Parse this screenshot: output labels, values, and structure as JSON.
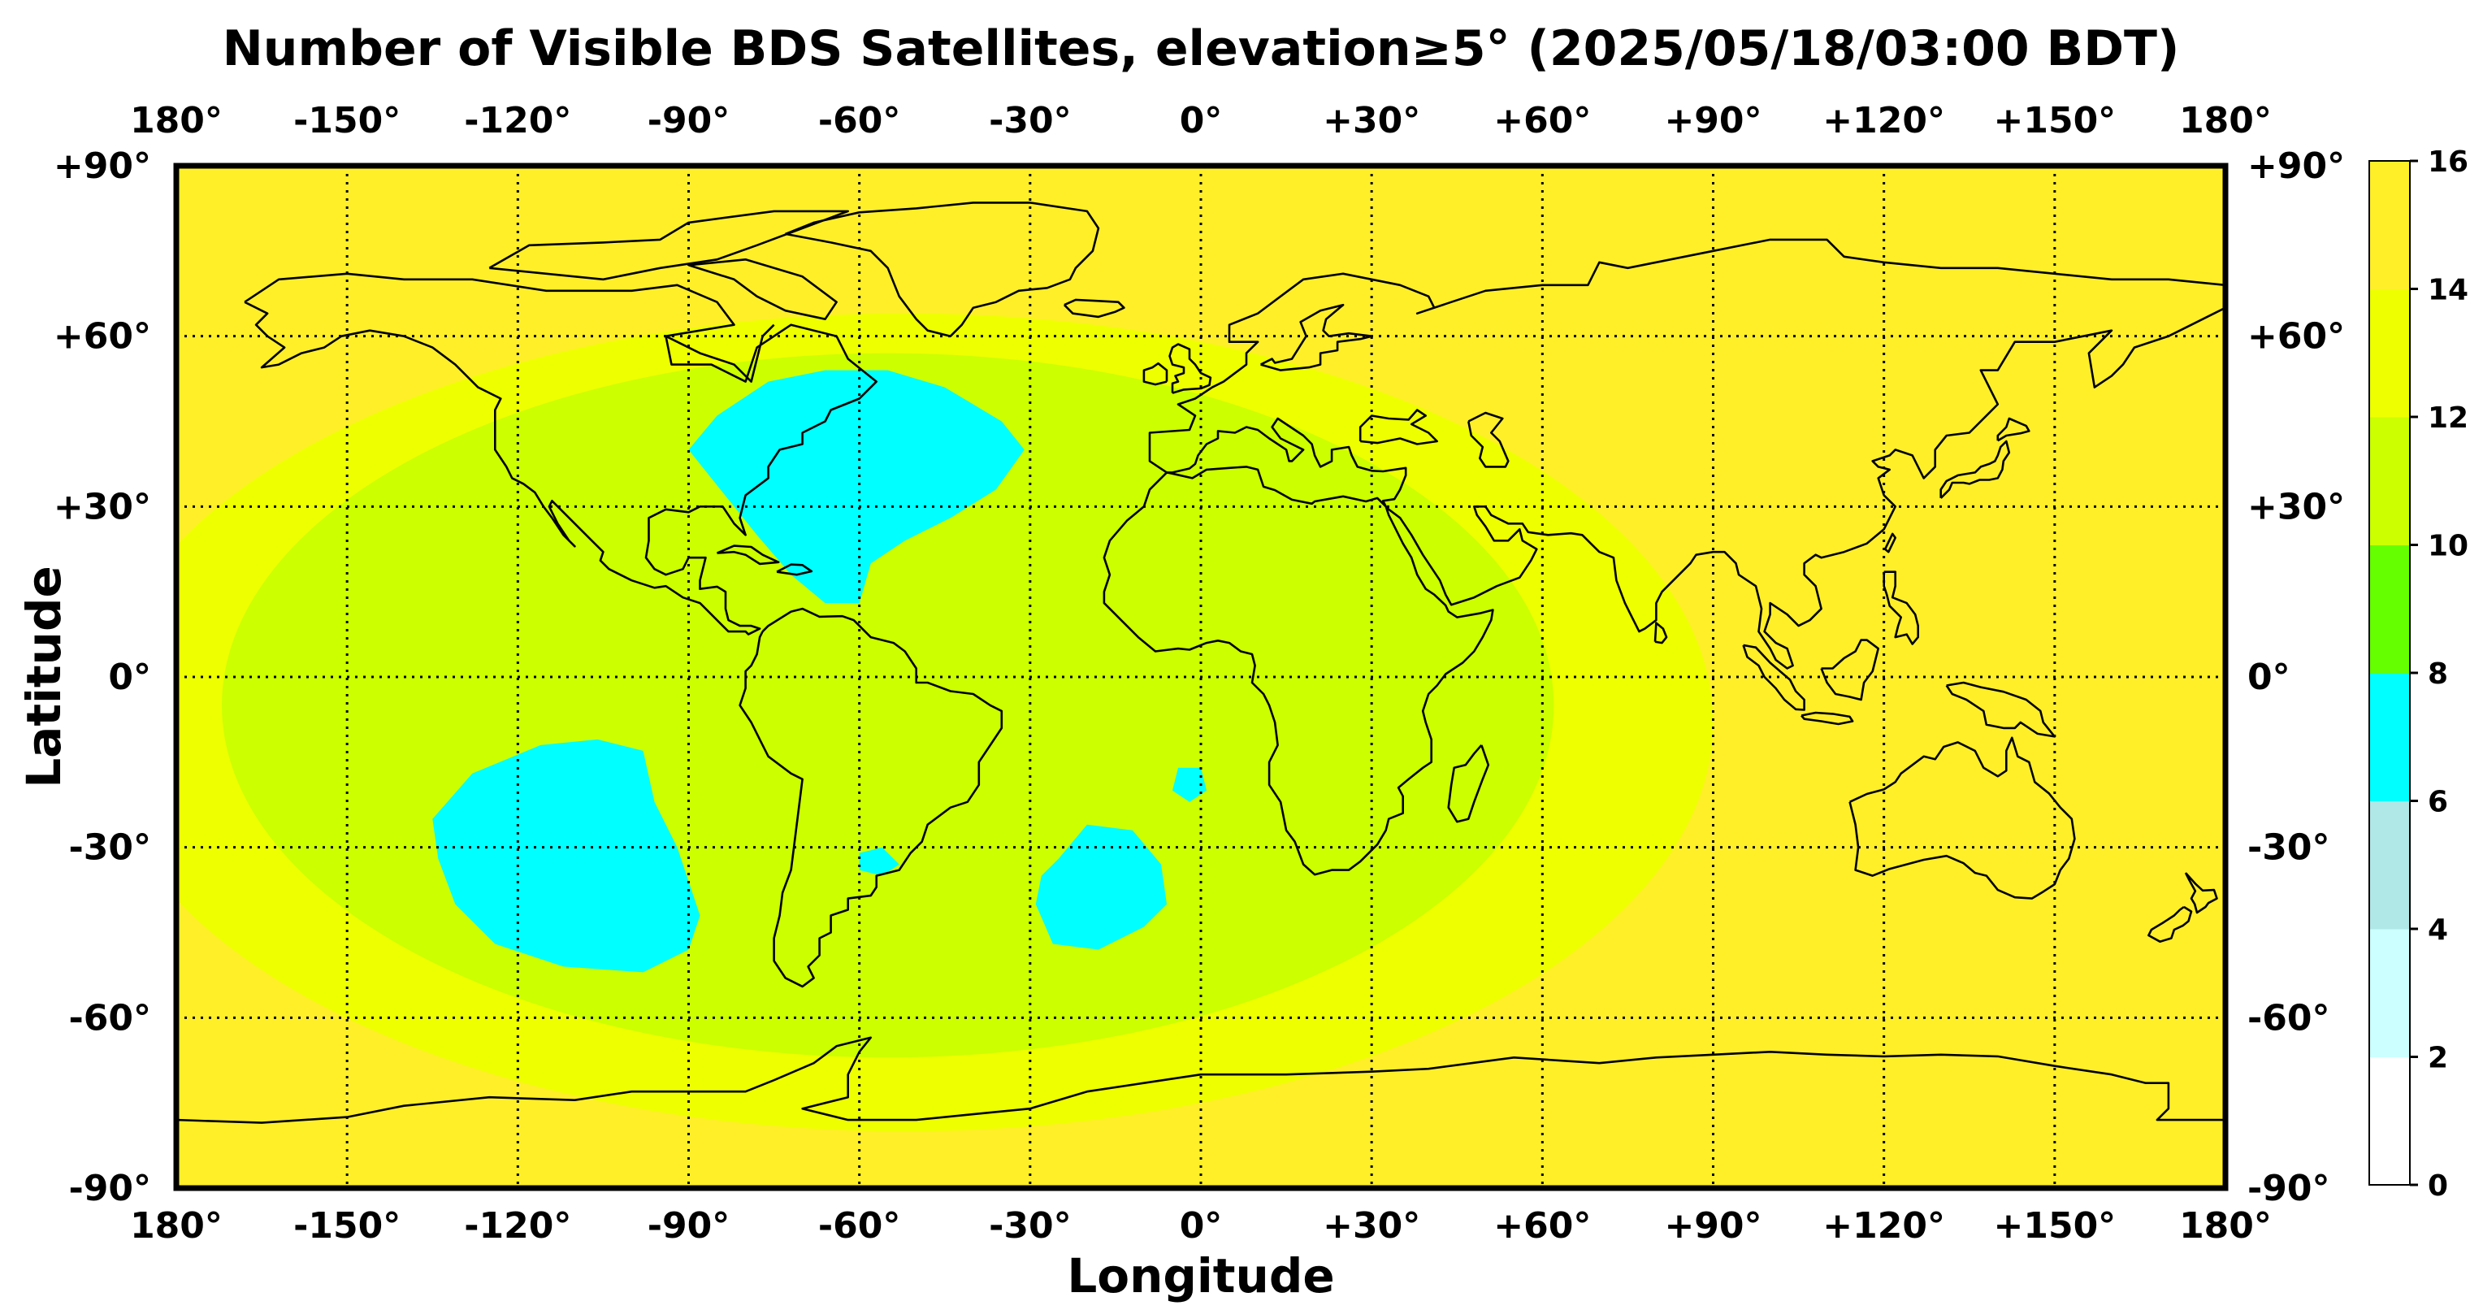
{
  "title": "Number of Visible BDS Satellites, elevation≥5° (2025/05/18/03:00 BDT)",
  "xlabel": "Longitude",
  "ylabel": "Latitude",
  "x_ticks": [
    "180°",
    "-150°",
    "-120°",
    "-90°",
    "-60°",
    "-30°",
    "0°",
    "+30°",
    "+60°",
    "+90°",
    "+120°",
    "+150°",
    "180°"
  ],
  "y_ticks": [
    "+90°",
    "+60°",
    "+30°",
    "0°",
    "-30°",
    "-60°",
    "-90°"
  ],
  "colorbar": {
    "ticks": [
      "0",
      "2",
      "4",
      "6",
      "8",
      "10",
      "12",
      "14",
      "16"
    ],
    "colors": [
      "#ffffff",
      "#ccffff",
      "#b0e8e8",
      "#00ffff",
      "#66ff00",
      "#ccff00",
      "#eeff00",
      "#ffef29"
    ]
  },
  "chart_data": {
    "type": "heatmap",
    "title": "Number of Visible BDS Satellites, elevation≥5° (2025/05/18/03:00 BDT)",
    "xlabel": "Longitude",
    "ylabel": "Latitude",
    "xlim": [
      -180,
      180
    ],
    "ylim": [
      -90,
      90
    ],
    "clim": [
      0,
      16
    ],
    "color_levels": [
      0,
      2,
      4,
      6,
      8,
      10,
      12,
      14,
      16
    ],
    "grid": true,
    "background_level": 14,
    "regions": [
      {
        "level": 12,
        "shape": "ellipse",
        "center": [
          -52,
          -8
        ],
        "radii": [
          142,
          72
        ]
      },
      {
        "level": 10,
        "shape": "ellipse",
        "center": [
          -55,
          -5
        ],
        "radii": [
          117,
          62
        ]
      },
      {
        "level": 10,
        "shape": "ellipse",
        "center": [
          -3,
          2
        ],
        "radii": [
          14,
          22
        ]
      },
      {
        "level": 6,
        "shape": "polygon",
        "points": [
          [
            -90,
            40
          ],
          [
            -85,
            46
          ],
          [
            -76,
            52
          ],
          [
            -66,
            54
          ],
          [
            -55,
            54
          ],
          [
            -45,
            51
          ],
          [
            -35,
            45
          ],
          [
            -31,
            40
          ],
          [
            -36,
            33
          ],
          [
            -44,
            28
          ],
          [
            -52,
            24
          ],
          [
            -58,
            20
          ],
          [
            -60,
            13
          ],
          [
            -66,
            13
          ],
          [
            -72,
            18
          ],
          [
            -78,
            25
          ],
          [
            -82,
            30
          ],
          [
            -86,
            35
          ]
        ]
      },
      {
        "level": 6,
        "shape": "polygon",
        "points": [
          [
            -135,
            -25
          ],
          [
            -128,
            -17
          ],
          [
            -116,
            -12
          ],
          [
            -106,
            -11
          ],
          [
            -98,
            -13
          ],
          [
            -96,
            -22
          ],
          [
            -92,
            -30
          ],
          [
            -88,
            -42
          ],
          [
            -90,
            -48
          ],
          [
            -98,
            -52
          ],
          [
            -112,
            -51
          ],
          [
            -124,
            -47
          ],
          [
            -131,
            -40
          ],
          [
            -134,
            -32
          ]
        ]
      },
      {
        "level": 6,
        "shape": "polygon",
        "points": [
          [
            -25,
            -32
          ],
          [
            -20,
            -26
          ],
          [
            -12,
            -27
          ],
          [
            -7,
            -33
          ],
          [
            -6,
            -40
          ],
          [
            -10,
            -44
          ],
          [
            -18,
            -48
          ],
          [
            -26,
            -47
          ],
          [
            -29,
            -40
          ],
          [
            -28,
            -35
          ]
        ]
      },
      {
        "level": 6,
        "shape": "polygon",
        "points": [
          [
            -60,
            -31
          ],
          [
            -56,
            -30
          ],
          [
            -53,
            -33
          ],
          [
            -56,
            -35
          ],
          [
            -60,
            -34
          ]
        ]
      },
      {
        "level": 6,
        "shape": "polygon",
        "points": [
          [
            -4,
            -16
          ],
          [
            0,
            -16
          ],
          [
            1,
            -20
          ],
          [
            -2,
            -22
          ],
          [
            -5,
            -20
          ]
        ]
      }
    ]
  }
}
